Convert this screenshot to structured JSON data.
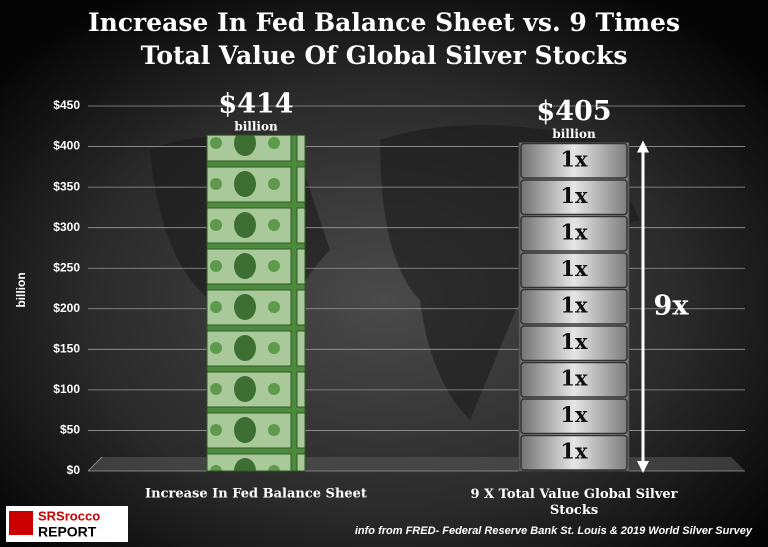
{
  "chart_data": {
    "type": "bar",
    "title": "Increase In Fed Balance Sheet vs. 9 Times Total Value Of Global Silver Stocks",
    "y_label": "billion",
    "categories": [
      "Increase  In  Fed Balance Sheet",
      "9 X  Total Value Global Silver Stocks"
    ],
    "values": [
      414,
      405
    ],
    "value_labels": [
      "$414",
      "$405"
    ],
    "value_label_unit": "billion",
    "colors": [
      "#3f7a34",
      "#9a9a9a"
    ],
    "ylim": [
      0,
      450
    ],
    "yticks": [
      {
        "value": 0,
        "label": "$0"
      },
      {
        "value": 50,
        "label": "$50"
      },
      {
        "value": 100,
        "label": "$100"
      },
      {
        "value": 150,
        "label": "$150"
      },
      {
        "value": 200,
        "label": "$200"
      },
      {
        "value": 250,
        "label": "$250"
      },
      {
        "value": 300,
        "label": "$300"
      },
      {
        "value": 350,
        "label": "$350"
      },
      {
        "value": 400,
        "label": "$400"
      },
      {
        "value": 450,
        "label": "$450"
      }
    ],
    "grid": true,
    "blocks": [
      "1x",
      "1x",
      "1x",
      "1x",
      "1x",
      "1x",
      "1x",
      "1x",
      "1x"
    ],
    "multiplier_label": "9x",
    "source": "info from FRED- Federal Reserve Bank St. Louis & 2019 World Silver Survey",
    "logo": [
      "SRSrocco",
      "REPORT"
    ]
  }
}
